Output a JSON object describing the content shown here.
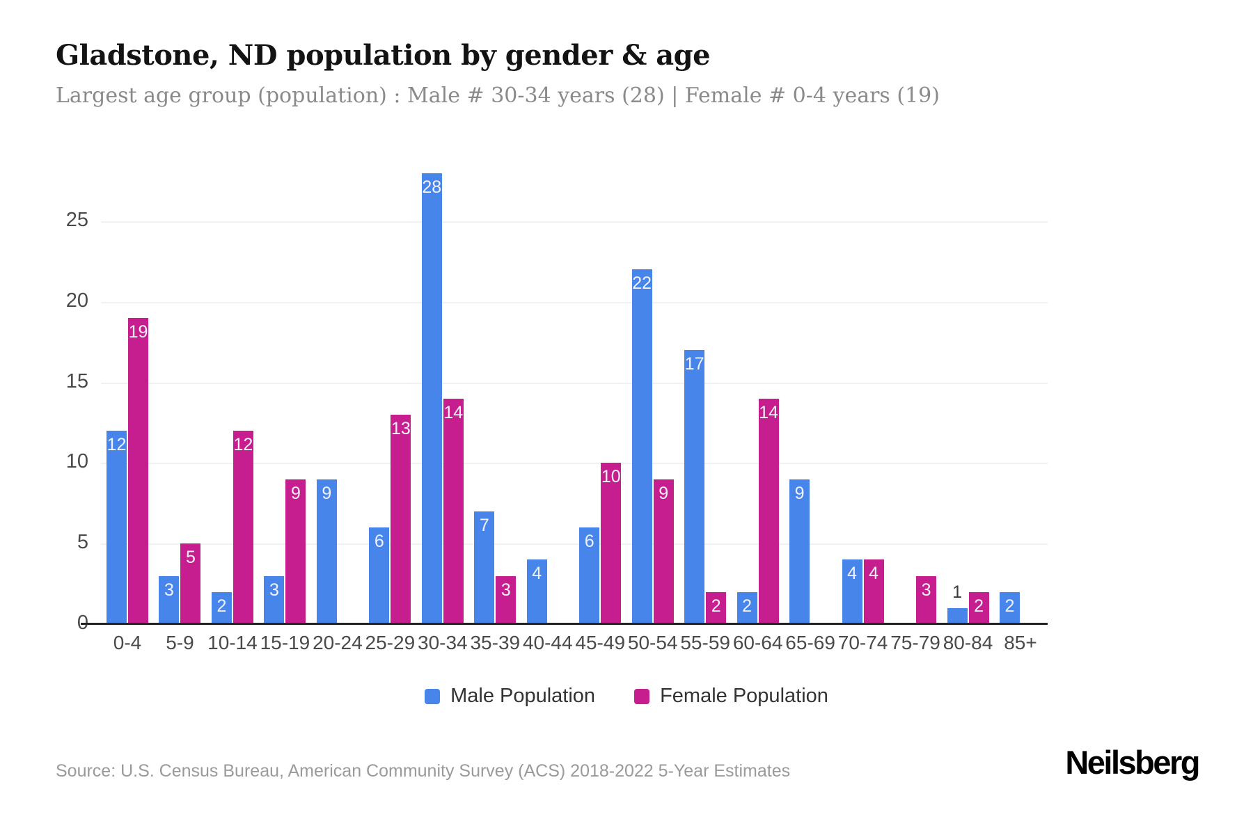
{
  "page": {
    "title": "Gladstone, ND population by gender & age",
    "subtitle": "Largest age group (population) : Male # 30-34 years (28) | Female # 0-4 years (19)",
    "source": "Source: U.S. Census Bureau, American Community Survey (ACS) 2018-2022 5-Year Estimates",
    "brand": "Neilsberg"
  },
  "colors": {
    "male": "#4785EB",
    "female": "#C61D8F",
    "grid": "#f1f1f1",
    "axis_line": "#222222",
    "tick_text": "#4a4a4a",
    "label_in_bar": "#f2f3fa",
    "label_above_bar": "#3a3a3a"
  },
  "chart_data": {
    "type": "bar",
    "title": "Gladstone, ND population by gender & age",
    "categories": [
      "0-4",
      "5-9",
      "10-14",
      "15-19",
      "20-24",
      "25-29",
      "30-34",
      "35-39",
      "40-44",
      "45-49",
      "50-54",
      "55-59",
      "60-64",
      "65-69",
      "70-74",
      "75-79",
      "80-84",
      "85+"
    ],
    "series": [
      {
        "name": "Male Population",
        "color_key": "male",
        "values": [
          12,
          3,
          2,
          3,
          9,
          6,
          28,
          7,
          4,
          6,
          22,
          17,
          2,
          9,
          4,
          0,
          1,
          2
        ]
      },
      {
        "name": "Female Population",
        "color_key": "female",
        "values": [
          19,
          5,
          12,
          9,
          0,
          13,
          14,
          3,
          0,
          10,
          9,
          2,
          14,
          0,
          4,
          3,
          2,
          0
        ]
      }
    ],
    "xlabel": "",
    "ylabel": "",
    "yticks": [
      0,
      5,
      10,
      15,
      20,
      25
    ],
    "ylim": [
      0,
      29
    ],
    "grid": "horizontal",
    "legend_position": "bottom",
    "bar_value_labels": "shown; white inside bar top, dark above bar when value is 1, hidden when 0"
  }
}
